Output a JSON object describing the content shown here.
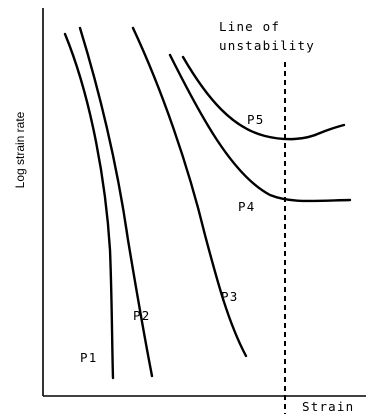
{
  "axes": {
    "y_label": "Log strain rate",
    "x_label": "Strain"
  },
  "instability_line": {
    "label_line1": "Line of",
    "label_line2": "unstability"
  },
  "curves": [
    {
      "id": "P1",
      "label": "P1"
    },
    {
      "id": "P2",
      "label": "P2"
    },
    {
      "id": "P3",
      "label": "P3"
    },
    {
      "id": "P4",
      "label": "P4"
    },
    {
      "id": "P5",
      "label": "P5"
    }
  ]
}
